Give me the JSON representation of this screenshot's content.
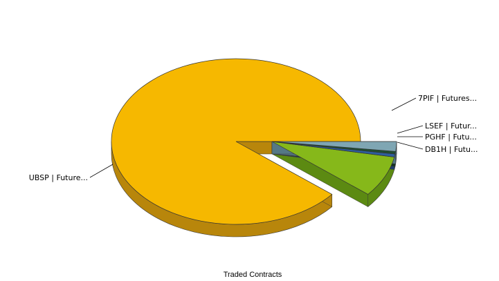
{
  "chart_data": {
    "type": "pie",
    "style": "3d-exploded",
    "title": "Traded Contracts",
    "slices": [
      {
        "label": "UBSP | Future...",
        "value": 89.0,
        "color": "#F6B800",
        "side": "#B8860B"
      },
      {
        "label": "7PIF | Futures...",
        "value": 8.0,
        "color": "#86B81A",
        "side": "#5C8A12"
      },
      {
        "label": "LSEF | Futur...",
        "value": 0.6,
        "color": "#2E5E9E",
        "side": "#1E3E6E"
      },
      {
        "label": "PGHF | Futu...",
        "value": 0.5,
        "color": "#1F4F33",
        "side": "#123322"
      },
      {
        "label": "DB1H | Futu...",
        "value": 1.9,
        "color": "#7FA6B3",
        "side": "#557885"
      }
    ]
  }
}
